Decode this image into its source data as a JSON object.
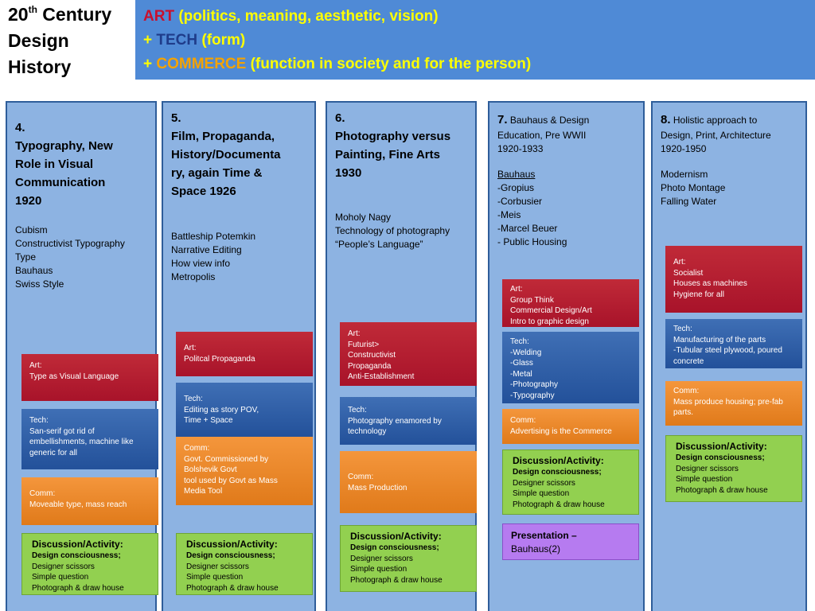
{
  "corner_title": {
    "line1": "20",
    "sup": "th",
    "line1_rest": " Century",
    "line2": "Design",
    "line3": "History"
  },
  "header": {
    "line1_key": "ART",
    "line1_rest": " (politics, meaning, aesthetic, vision)",
    "line2_prefix": "+ ",
    "line2_key": "TECH",
    "line2_rest": " (form)",
    "line3_prefix": "+ ",
    "line3_key": "COMMERCE",
    "line3_rest": " (function in society and for the person)",
    "colors": {
      "bar": "#4f8ad6",
      "art": "#c8102e",
      "tech": "#1f3c8a",
      "commerce": "#f5a300",
      "text": "#ffff00"
    }
  },
  "columns": [
    {
      "num": "4.",
      "title": [
        "Typography, New",
        "Role in Visual",
        "Communication",
        "1920"
      ],
      "items": [
        "Cubism",
        "Constructivist Typography",
        "Type",
        "Bauhaus",
        "Swiss Style"
      ],
      "art": {
        "label": "Art:",
        "lines": [
          "Type as Visual Language"
        ]
      },
      "tech": {
        "label": "Tech:",
        "lines": [
          "San-serif got rid of",
          "embellishments, machine like",
          "generic for all"
        ]
      },
      "comm": {
        "label": "Comm:",
        "lines": [
          "Moveable type, mass reach"
        ]
      },
      "disc": {
        "heading": "Discussion/Activity:",
        "sub": "Design consciousness;",
        "lines": [
          "Designer scissors",
          "Simple question",
          "Photograph & draw house"
        ]
      }
    },
    {
      "num": "5.",
      "title": [
        "Film, Propaganda,",
        "History/Documenta",
        "ry, again Time &",
        "Space  1926"
      ],
      "items": [
        "Battleship Potemkin",
        "Narrative Editing",
        "How view info",
        "Metropolis"
      ],
      "art": {
        "label": "Art:",
        "lines": [
          "Politcal Propaganda"
        ]
      },
      "tech": {
        "label": "Tech:",
        "lines": [
          "Editing as story POV,",
          "Time + Space"
        ]
      },
      "comm": {
        "label": "Comm:",
        "lines": [
          "Govt. Commissioned by",
          "Bolshevik  Govt",
          "tool used by Govt as Mass",
          "Media Tool"
        ]
      },
      "disc": {
        "heading": "Discussion/Activity:",
        "sub": "Design consciousness;",
        "lines": [
          "Designer scissors",
          "Simple question",
          "Photograph & draw house"
        ]
      }
    },
    {
      "num": "6.",
      "title": [
        "Photography versus",
        "Painting, Fine Arts",
        "1930"
      ],
      "items": [
        "Moholy Nagy",
        "Technology of photography",
        "“People’s Language”"
      ],
      "art": {
        "label": "Art:",
        "lines": [
          "Futurist>",
          "Constructivist",
          "Propaganda",
          "Anti-Establishment"
        ]
      },
      "tech": {
        "label": "Tech:",
        "lines": [
          "Photography enamored by",
          "technology"
        ]
      },
      "comm": {
        "label": "Comm:",
        "lines": [
          "Mass Production"
        ]
      },
      "disc": {
        "heading": "Discussion/Activity:",
        "sub": "Design consciousness;",
        "lines": [
          "Designer scissors",
          "Simple question",
          "Photograph & draw house"
        ]
      }
    },
    {
      "num": "7.",
      "title_rest": " Bauhaus & Design",
      "title_small": [
        "Education, Pre WWII",
        "1920-1933"
      ],
      "underline": "Bauhaus",
      "items": [
        "-Gropius",
        "-Corbusier",
        "-Meis",
        "-Marcel Beuer",
        "- Public Housing"
      ],
      "art": {
        "label": "Art:",
        "lines": [
          "Group Think",
          "Commercial Design/Art",
          "Intro to graphic design"
        ]
      },
      "tech": {
        "label": "Tech:",
        "lines": [
          "-Welding",
          "-Glass",
          "-Metal",
          "-Photography",
          "-Typography"
        ]
      },
      "comm": {
        "label": "Comm:",
        "lines": [
          "Advertising is the Commerce"
        ]
      },
      "disc": {
        "heading": "Discussion/Activity:",
        "sub": "Design consciousness;",
        "lines": [
          "Designer scissors",
          "Simple question",
          "Photograph & draw house"
        ]
      },
      "presentation": {
        "heading": "Presentation –",
        "line": "Bauhaus(2)"
      }
    },
    {
      "num": "8.",
      "title_rest": " Holistic approach to",
      "title_small": [
        "Design, Print, Architecture",
        "1920-1950"
      ],
      "items": [
        "Modernism",
        "Photo Montage",
        "Falling Water"
      ],
      "art": {
        "label": "Art:",
        "lines": [
          "Socialist",
          "Houses as machines",
          "Hygiene for all"
        ]
      },
      "tech": {
        "label": "Tech:",
        "lines": [
          "Manufacturing of the parts",
          "-Tubular steel plywood, poured",
          "concrete"
        ]
      },
      "comm": {
        "label": "Comm:",
        "lines": [
          "Mass produce housing; pre-fab",
          "parts."
        ]
      },
      "disc": {
        "heading": "Discussion/Activity:",
        "sub": "Design consciousness;",
        "lines": [
          "Designer scissors",
          "Simple question",
          "Photograph & draw house"
        ]
      }
    }
  ]
}
